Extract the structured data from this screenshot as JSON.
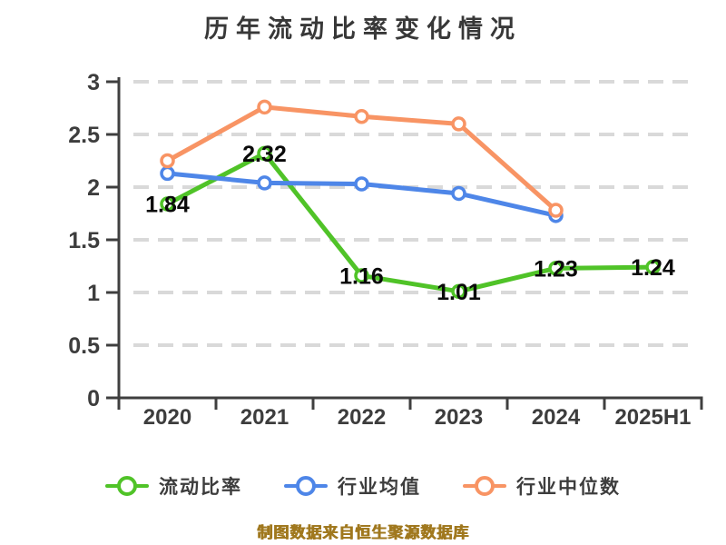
{
  "title": "历年流动比率变化情况",
  "source_note": "制图数据来自恒生聚源数据库",
  "chart_data": {
    "type": "line",
    "title": "历年流动比率变化情况",
    "categories": [
      "2020",
      "2021",
      "2022",
      "2023",
      "2024",
      "2025H1"
    ],
    "series": [
      {
        "name": "流动比率",
        "color": "#50c328",
        "values": [
          1.84,
          2.32,
          1.16,
          1.01,
          1.23,
          1.24
        ],
        "data_labels": [
          "1.84",
          "2.32",
          "1.16",
          "1.01",
          "1.23",
          "1.24"
        ]
      },
      {
        "name": "行业均值",
        "color": "#4e86e8",
        "values": [
          2.13,
          2.04,
          2.03,
          1.94,
          1.73,
          null
        ],
        "data_labels": null
      },
      {
        "name": "行业中位数",
        "color": "#f89464",
        "values": [
          2.25,
          2.76,
          2.67,
          2.6,
          1.78,
          null
        ],
        "data_labels": null
      }
    ],
    "xlabel": "",
    "ylabel": "",
    "ylim": [
      0,
      3
    ],
    "yticks": [
      "0",
      "0.5",
      "1",
      "1.5",
      "2",
      "2.5",
      "3"
    ],
    "grid": "horizontal-dashed",
    "legend_position": "bottom",
    "marker": "circle-white-fill"
  },
  "legend": {
    "items": [
      {
        "label": "流动比率",
        "color": "#50c328"
      },
      {
        "label": "行业均值",
        "color": "#4e86e8"
      },
      {
        "label": "行业中位数",
        "color": "#f89464"
      }
    ]
  },
  "colors": {
    "background": "#ffffff",
    "axis": "#3f3f3f",
    "grid": "#d9d9d9",
    "tick_label": "#3d3d3d",
    "data_label": "#0a0a0a",
    "title": "#383838",
    "source_note": "#a0781e"
  }
}
